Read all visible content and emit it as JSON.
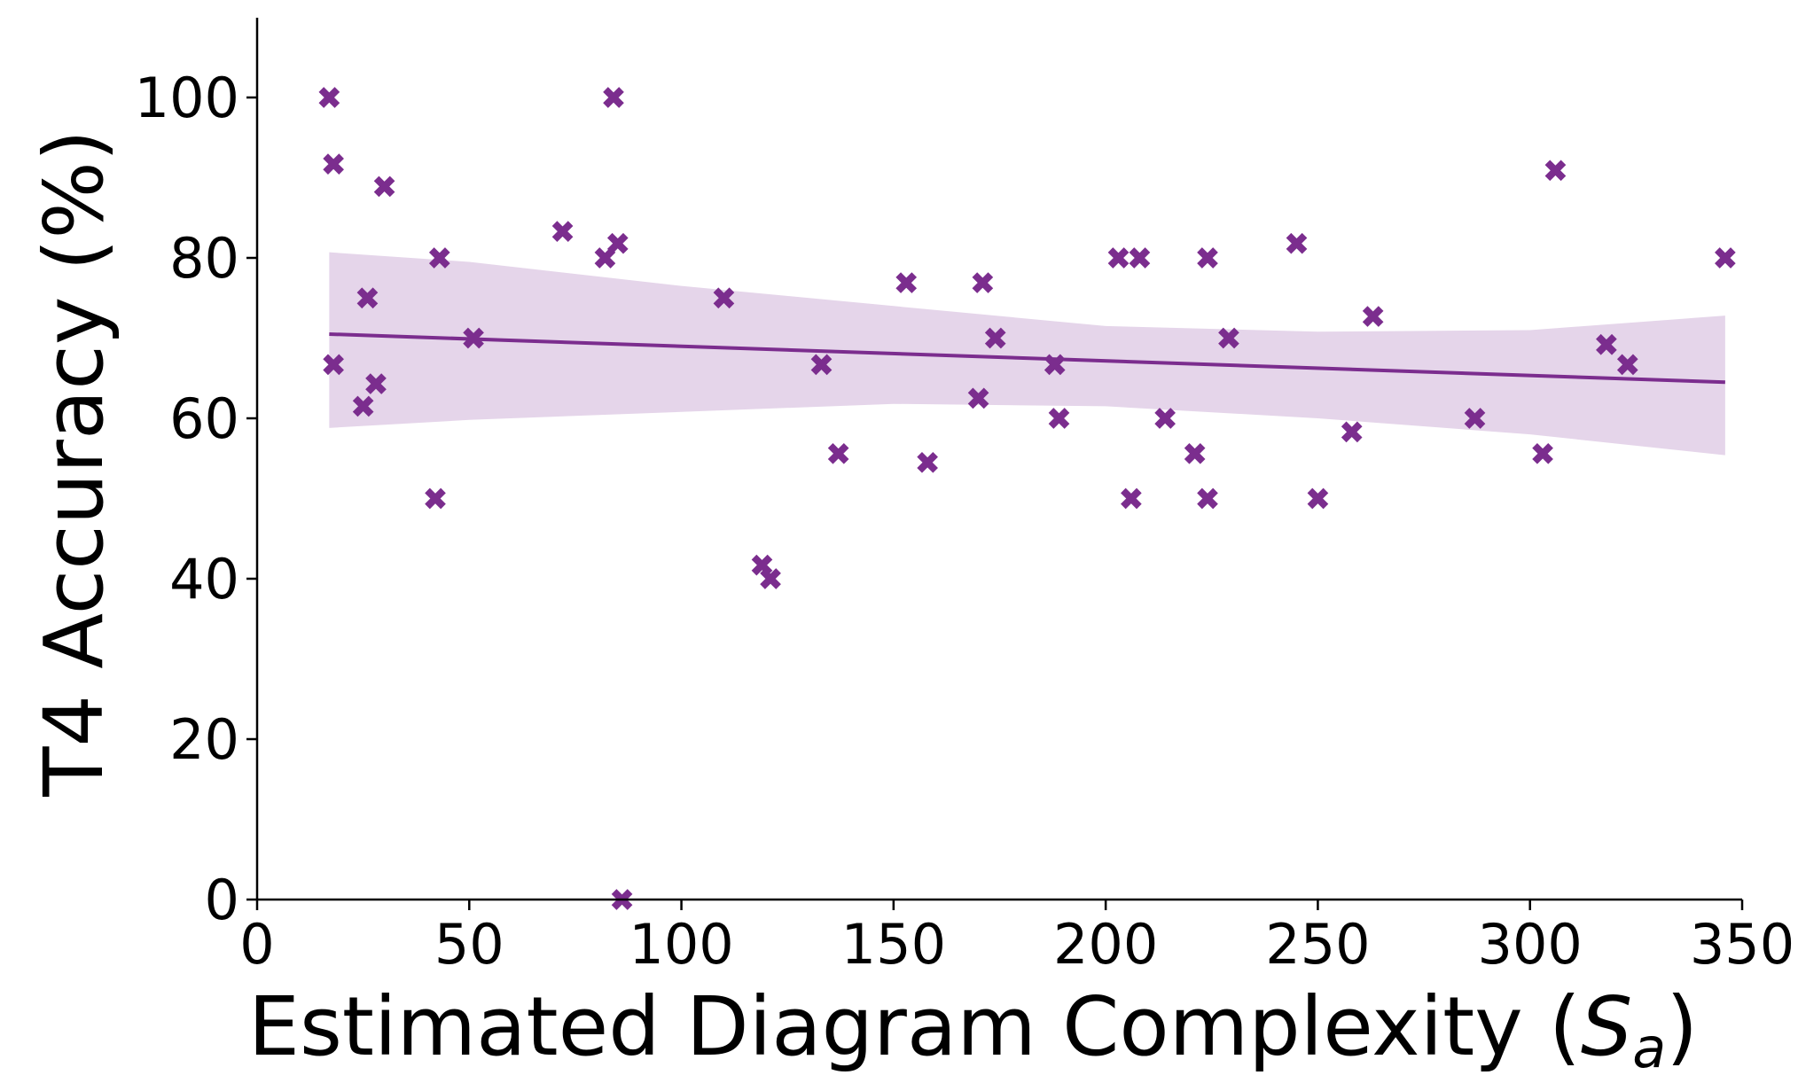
{
  "chart_data": {
    "type": "scatter",
    "title": "",
    "xlabel": "Estimated Diagram Complexity (",
    "xlabel_symbol": "S",
    "xlabel_subscript": "a",
    "xlabel_close": ")",
    "ylabel": "T4 Accuracy (%)",
    "xlim": [
      0,
      350
    ],
    "ylim": [
      0,
      110
    ],
    "xticks": [
      0,
      50,
      100,
      150,
      200,
      250,
      300,
      350
    ],
    "yticks": [
      0,
      20,
      40,
      60,
      80,
      100
    ],
    "grid": false,
    "marker": "X",
    "color": "#7B2D8E",
    "band_color": "#E5D5EA",
    "points": [
      {
        "x": 17,
        "y": 100
      },
      {
        "x": 18,
        "y": 91.7
      },
      {
        "x": 18,
        "y": 66.7
      },
      {
        "x": 25,
        "y": 61.5
      },
      {
        "x": 26,
        "y": 75
      },
      {
        "x": 28,
        "y": 64.3
      },
      {
        "x": 30,
        "y": 88.9
      },
      {
        "x": 42,
        "y": 50
      },
      {
        "x": 43,
        "y": 80
      },
      {
        "x": 51,
        "y": 70
      },
      {
        "x": 72,
        "y": 83.3
      },
      {
        "x": 82,
        "y": 80
      },
      {
        "x": 84,
        "y": 100
      },
      {
        "x": 85,
        "y": 81.8
      },
      {
        "x": 86,
        "y": 0
      },
      {
        "x": 110,
        "y": 75
      },
      {
        "x": 119,
        "y": 41.7
      },
      {
        "x": 121,
        "y": 40
      },
      {
        "x": 133,
        "y": 66.7
      },
      {
        "x": 137,
        "y": 55.6
      },
      {
        "x": 153,
        "y": 76.9
      },
      {
        "x": 158,
        "y": 54.5
      },
      {
        "x": 170,
        "y": 62.5
      },
      {
        "x": 171,
        "y": 76.9
      },
      {
        "x": 174,
        "y": 70
      },
      {
        "x": 188,
        "y": 66.7
      },
      {
        "x": 189,
        "y": 60
      },
      {
        "x": 203,
        "y": 80
      },
      {
        "x": 206,
        "y": 50
      },
      {
        "x": 208,
        "y": 80
      },
      {
        "x": 214,
        "y": 60
      },
      {
        "x": 221,
        "y": 55.6
      },
      {
        "x": 224,
        "y": 80
      },
      {
        "x": 224,
        "y": 50
      },
      {
        "x": 229,
        "y": 70
      },
      {
        "x": 245,
        "y": 81.8
      },
      {
        "x": 250,
        "y": 50
      },
      {
        "x": 258,
        "y": 58.3
      },
      {
        "x": 263,
        "y": 72.7
      },
      {
        "x": 287,
        "y": 60
      },
      {
        "x": 303,
        "y": 55.6
      },
      {
        "x": 306,
        "y": 90.9
      },
      {
        "x": 318,
        "y": 69.2
      },
      {
        "x": 323,
        "y": 66.7
      },
      {
        "x": 346,
        "y": 80
      }
    ],
    "regression": {
      "x": [
        17,
        346
      ],
      "y": [
        70.5,
        64.5
      ]
    },
    "confidence_band": {
      "x": [
        17,
        50,
        100,
        150,
        200,
        250,
        300,
        346
      ],
      "upper": [
        80.7,
        79.5,
        76.5,
        74.0,
        71.5,
        70.8,
        71.0,
        72.8
      ],
      "lower": [
        58.8,
        59.8,
        60.8,
        61.8,
        61.5,
        60.0,
        58.0,
        55.4
      ]
    }
  }
}
